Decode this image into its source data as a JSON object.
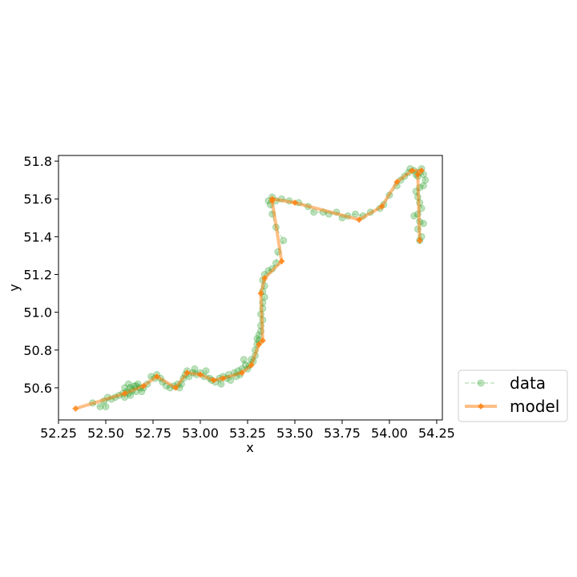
{
  "chart_data": {
    "type": "line",
    "title": "",
    "xlabel": "x",
    "ylabel": "y",
    "xlim": [
      52.25,
      54.28
    ],
    "ylim": [
      50.43,
      51.83
    ],
    "x_ticks": [
      52.25,
      52.5,
      52.75,
      53.0,
      53.25,
      53.5,
      53.75,
      54.0,
      54.25
    ],
    "x_tick_labels": [
      "52.25",
      "52.50",
      "52.75",
      "53.00",
      "53.25",
      "53.50",
      "53.75",
      "54.00",
      "54.25"
    ],
    "y_ticks": [
      50.6,
      50.8,
      51.0,
      51.2,
      51.4,
      51.6,
      51.8
    ],
    "y_tick_labels": [
      "50.6",
      "50.8",
      "51.0",
      "51.2",
      "51.4",
      "51.6",
      "51.8"
    ],
    "grid": false,
    "legend_position": "outside-bottom-right",
    "colors": {
      "data": "#2ca02c",
      "model": "#ff7f0e"
    },
    "series": [
      {
        "name": "data",
        "style": "dashed-line-circle-markers",
        "points": [
          [
            52.43,
            50.52
          ],
          [
            52.47,
            50.5
          ],
          [
            52.49,
            50.53
          ],
          [
            52.5,
            50.5
          ],
          [
            52.51,
            50.55
          ],
          [
            52.53,
            50.54
          ],
          [
            52.55,
            50.55
          ],
          [
            52.57,
            50.56
          ],
          [
            52.59,
            50.57
          ],
          [
            52.6,
            50.55
          ],
          [
            52.61,
            50.58
          ],
          [
            52.6,
            50.6
          ],
          [
            52.62,
            50.57
          ],
          [
            52.63,
            50.6
          ],
          [
            52.62,
            50.62
          ],
          [
            52.64,
            50.59
          ],
          [
            52.65,
            50.61
          ],
          [
            52.63,
            50.56
          ],
          [
            52.66,
            50.58
          ],
          [
            52.67,
            50.62
          ],
          [
            52.68,
            50.6
          ],
          [
            52.66,
            50.61
          ],
          [
            52.69,
            50.58
          ],
          [
            52.7,
            50.6
          ],
          [
            52.72,
            50.62
          ],
          [
            52.74,
            50.66
          ],
          [
            52.76,
            50.65
          ],
          [
            52.77,
            50.67
          ],
          [
            52.79,
            50.65
          ],
          [
            52.8,
            50.63
          ],
          [
            52.82,
            50.61
          ],
          [
            52.84,
            50.6
          ],
          [
            52.86,
            50.61
          ],
          [
            52.88,
            50.62
          ],
          [
            52.89,
            50.6
          ],
          [
            52.9,
            50.62
          ],
          [
            52.91,
            50.65
          ],
          [
            52.92,
            50.67
          ],
          [
            52.93,
            50.69
          ],
          [
            52.94,
            50.66
          ],
          [
            52.96,
            50.68
          ],
          [
            52.97,
            50.7
          ],
          [
            52.98,
            50.67
          ],
          [
            53.0,
            50.68
          ],
          [
            53.02,
            50.66
          ],
          [
            53.03,
            50.69
          ],
          [
            53.05,
            50.65
          ],
          [
            53.06,
            50.64
          ],
          [
            53.08,
            50.63
          ],
          [
            53.1,
            50.65
          ],
          [
            53.11,
            50.62
          ],
          [
            53.12,
            50.66
          ],
          [
            53.14,
            50.65
          ],
          [
            53.15,
            50.67
          ],
          [
            53.16,
            50.64
          ],
          [
            53.18,
            50.68
          ],
          [
            53.19,
            50.66
          ],
          [
            53.2,
            50.69
          ],
          [
            53.21,
            50.67
          ],
          [
            53.22,
            50.7
          ],
          [
            53.23,
            50.75
          ],
          [
            53.24,
            50.72
          ],
          [
            53.25,
            50.7
          ],
          [
            53.26,
            50.72
          ],
          [
            53.27,
            50.75
          ],
          [
            53.28,
            50.74
          ],
          [
            53.29,
            50.77
          ],
          [
            53.29,
            50.8
          ],
          [
            53.3,
            50.83
          ],
          [
            53.3,
            50.86
          ],
          [
            53.31,
            50.85
          ],
          [
            53.31,
            50.88
          ],
          [
            53.32,
            50.9
          ],
          [
            53.32,
            50.93
          ],
          [
            53.33,
            50.96
          ],
          [
            53.32,
            50.99
          ],
          [
            53.33,
            51.02
          ],
          [
            53.33,
            51.05
          ],
          [
            53.34,
            51.08
          ],
          [
            53.33,
            51.11
          ],
          [
            53.34,
            51.14
          ],
          [
            53.33,
            51.17
          ],
          [
            53.34,
            51.2
          ],
          [
            53.36,
            51.22
          ],
          [
            53.38,
            51.23
          ],
          [
            53.4,
            51.26
          ],
          [
            53.41,
            51.32
          ],
          [
            53.44,
            51.38
          ],
          [
            53.4,
            51.45
          ],
          [
            53.38,
            51.52
          ],
          [
            53.37,
            51.57
          ],
          [
            53.36,
            51.59
          ],
          [
            53.38,
            51.61
          ],
          [
            53.4,
            51.59
          ],
          [
            53.43,
            51.6
          ],
          [
            53.47,
            51.59
          ],
          [
            53.52,
            51.58
          ],
          [
            53.57,
            51.56
          ],
          [
            53.6,
            51.53
          ],
          [
            53.65,
            51.53
          ],
          [
            53.68,
            51.52
          ],
          [
            53.72,
            51.53
          ],
          [
            53.75,
            51.5
          ],
          [
            53.78,
            51.51
          ],
          [
            53.82,
            51.52
          ],
          [
            53.86,
            51.51
          ],
          [
            53.9,
            51.53
          ],
          [
            53.95,
            51.55
          ],
          [
            53.97,
            51.57
          ],
          [
            54.0,
            51.62
          ],
          [
            54.04,
            51.67
          ],
          [
            54.06,
            51.7
          ],
          [
            54.08,
            51.72
          ],
          [
            54.1,
            51.74
          ],
          [
            54.11,
            51.76
          ],
          [
            54.13,
            51.75
          ],
          [
            54.14,
            51.73
          ],
          [
            54.15,
            51.72
          ],
          [
            54.16,
            51.74
          ],
          [
            54.17,
            51.76
          ],
          [
            54.18,
            51.73
          ],
          [
            54.19,
            51.7
          ],
          [
            54.18,
            51.67
          ],
          [
            54.16,
            51.66
          ],
          [
            54.14,
            51.64
          ],
          [
            54.15,
            51.61
          ],
          [
            54.16,
            51.58
          ],
          [
            54.17,
            51.55
          ],
          [
            54.15,
            51.52
          ],
          [
            54.13,
            51.51
          ],
          [
            54.16,
            51.48
          ],
          [
            54.18,
            51.47
          ],
          [
            54.15,
            51.44
          ],
          [
            54.17,
            51.4
          ],
          [
            54.16,
            51.38
          ]
        ]
      },
      {
        "name": "model",
        "style": "thick-line-diamond-markers",
        "points": [
          [
            52.34,
            50.49
          ],
          [
            52.6,
            50.57
          ],
          [
            52.7,
            50.61
          ],
          [
            52.77,
            50.66
          ],
          [
            52.87,
            50.6
          ],
          [
            52.93,
            50.68
          ],
          [
            53.0,
            50.67
          ],
          [
            53.07,
            50.64
          ],
          [
            53.12,
            50.65
          ],
          [
            53.22,
            50.68
          ],
          [
            53.27,
            50.72
          ],
          [
            53.31,
            50.83
          ],
          [
            53.33,
            50.85
          ],
          [
            53.32,
            51.1
          ],
          [
            53.34,
            51.18
          ],
          [
            53.43,
            51.27
          ],
          [
            53.38,
            51.59
          ],
          [
            53.38,
            51.6
          ],
          [
            53.5,
            51.58
          ],
          [
            53.84,
            51.49
          ],
          [
            53.96,
            51.56
          ],
          [
            54.04,
            51.69
          ],
          [
            54.12,
            51.75
          ],
          [
            54.17,
            51.75
          ],
          [
            54.15,
            51.73
          ],
          [
            54.16,
            51.38
          ]
        ]
      }
    ]
  }
}
